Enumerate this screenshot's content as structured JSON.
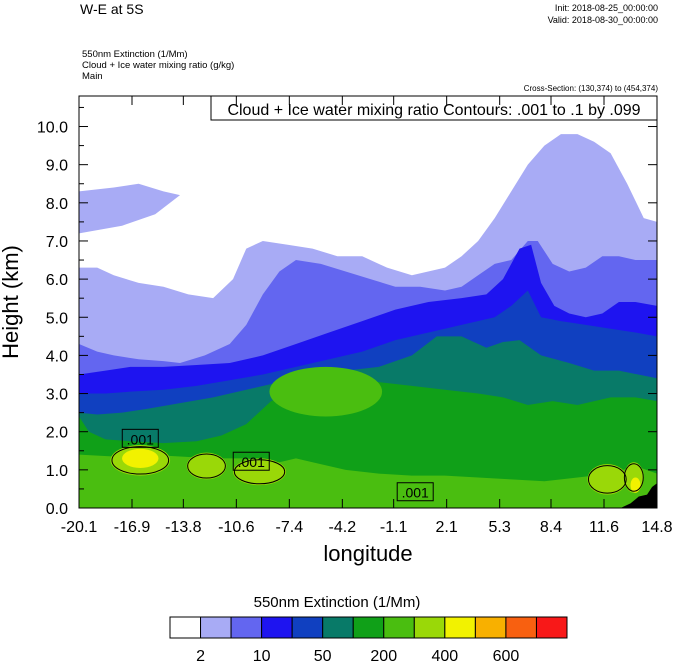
{
  "header": {
    "title": "W-E at 5S",
    "init": "Init: 2018-08-25_00:00:00",
    "valid": "Valid: 2018-08-30_00:00:00",
    "var1": "550nm Extinction   (1/Mm)",
    "var2": "Cloud + Ice water mixing ratio   (g/kg)",
    "var3": "Main",
    "cross_section": "Cross-Section: (130,374) to (454,374)"
  },
  "chart_data": {
    "type": "heatmap",
    "subtitle": "Cloud + Ice water mixing ratio Contours: .001 to .1 by .099",
    "xlabel": "longitude",
    "ylabel": "Height (km)",
    "x_ticks": [
      "-20.1",
      "-16.9",
      "-13.8",
      "-10.6",
      "-7.4",
      "-4.2",
      "-1.1",
      "2.1",
      "5.3",
      "8.4",
      "11.6",
      "14.8"
    ],
    "x_tick_values": [
      -20.1,
      -16.9,
      -13.8,
      -10.6,
      -7.4,
      -4.2,
      -1.1,
      2.1,
      5.3,
      8.4,
      11.6,
      14.8
    ],
    "y_ticks": [
      "0.0",
      "1.0",
      "2.0",
      "3.0",
      "4.0",
      "5.0",
      "6.0",
      "7.0",
      "8.0",
      "9.0",
      "10.0"
    ],
    "y_tick_values": [
      0,
      1,
      2,
      3,
      4,
      5,
      6,
      7,
      8,
      9,
      10
    ],
    "xlim": [
      -20.1,
      14.8
    ],
    "ylim": [
      0,
      10.8
    ],
    "contour_labels": [
      {
        "text": ".001",
        "x": -16.4,
        "y": 1.8
      },
      {
        "text": ".001",
        "x": -9.7,
        "y": 1.2
      },
      {
        "text": ".001",
        "x": 0.2,
        "y": 0.4
      }
    ],
    "colorbar": {
      "title": "550nm Extinction  (1/Mm)",
      "colors": [
        "#ffffff",
        "#a8abf5",
        "#6366f0",
        "#1e14f0",
        "#1040c0",
        "#087a68",
        "#10a018",
        "#4abe10",
        "#9ad808",
        "#f2f200",
        "#f8b000",
        "#f86010",
        "#f81818"
      ],
      "labels": [
        "2",
        "10",
        "50",
        "200",
        "400",
        "600"
      ]
    },
    "bands": [
      {
        "level": 1,
        "color": "#a8abf5",
        "top": [
          [
            -20.1,
            6.3
          ],
          [
            -19,
            6.3
          ],
          [
            -18,
            6.1
          ],
          [
            -16.5,
            5.9
          ],
          [
            -15,
            5.8
          ],
          [
            -13.5,
            5.6
          ],
          [
            -12,
            5.5
          ],
          [
            -10.8,
            6.0
          ],
          [
            -10,
            6.8
          ],
          [
            -9,
            7.0
          ],
          [
            -7.5,
            6.9
          ],
          [
            -6,
            6.8
          ],
          [
            -4.5,
            6.6
          ],
          [
            -3,
            6.6
          ],
          [
            -1.5,
            6.3
          ],
          [
            0,
            6.1
          ],
          [
            2,
            6.3
          ],
          [
            3,
            6.6
          ],
          [
            4,
            7.0
          ],
          [
            5,
            7.6
          ],
          [
            6,
            8.3
          ],
          [
            7,
            9.0
          ],
          [
            8,
            9.5
          ],
          [
            9,
            9.8
          ],
          [
            10,
            9.8
          ],
          [
            11,
            9.6
          ],
          [
            12,
            9.3
          ],
          [
            13,
            8.5
          ],
          [
            14,
            7.6
          ],
          [
            14.8,
            7.5
          ]
        ],
        "bottom": 0
      },
      {
        "level": 1,
        "color": "#a8abf5",
        "region": "upper-patch",
        "poly": [
          [
            -20.1,
            8.3
          ],
          [
            -18,
            8.4
          ],
          [
            -16.5,
            8.5
          ],
          [
            -15,
            8.3
          ],
          [
            -14,
            8.2
          ],
          [
            -15.5,
            7.7
          ],
          [
            -17.5,
            7.4
          ],
          [
            -20.1,
            7.2
          ]
        ]
      },
      {
        "level": 2,
        "color": "#6366f0",
        "top": [
          [
            -20.1,
            4.3
          ],
          [
            -19,
            4.1
          ],
          [
            -18,
            4.0
          ],
          [
            -16.5,
            3.9
          ],
          [
            -15,
            3.85
          ],
          [
            -14,
            3.8
          ],
          [
            -12.5,
            4.0
          ],
          [
            -11,
            4.3
          ],
          [
            -10,
            4.8
          ],
          [
            -9,
            5.6
          ],
          [
            -8,
            6.2
          ],
          [
            -7,
            6.5
          ],
          [
            -5.5,
            6.4
          ],
          [
            -4,
            6.2
          ],
          [
            -2.5,
            6.0
          ],
          [
            -1,
            5.8
          ],
          [
            0.5,
            5.8
          ],
          [
            2,
            5.7
          ],
          [
            3,
            5.8
          ],
          [
            4,
            6.1
          ],
          [
            5,
            6.4
          ],
          [
            6,
            6.5
          ],
          [
            7,
            7.0
          ],
          [
            7.6,
            7.0
          ],
          [
            8.5,
            6.4
          ],
          [
            9.5,
            6.2
          ],
          [
            10.5,
            6.3
          ],
          [
            11.5,
            6.6
          ],
          [
            12.5,
            6.6
          ],
          [
            13.5,
            6.5
          ],
          [
            14.8,
            6.5
          ]
        ],
        "bottom": 0
      },
      {
        "level": 3,
        "color": "#1e14f0",
        "top": [
          [
            -20.1,
            3.5
          ],
          [
            -18.5,
            3.6
          ],
          [
            -17,
            3.7
          ],
          [
            -15,
            3.7
          ],
          [
            -13,
            3.75
          ],
          [
            -11,
            3.8
          ],
          [
            -9,
            4.0
          ],
          [
            -7,
            4.3
          ],
          [
            -5,
            4.6
          ],
          [
            -3,
            4.9
          ],
          [
            -1,
            5.2
          ],
          [
            1,
            5.4
          ],
          [
            3,
            5.5
          ],
          [
            4.5,
            5.6
          ],
          [
            5.5,
            6.0
          ],
          [
            6.5,
            6.8
          ],
          [
            7.2,
            6.9
          ],
          [
            7.8,
            5.9
          ],
          [
            8.6,
            5.3
          ],
          [
            9.5,
            5.1
          ],
          [
            10.5,
            5.0
          ],
          [
            11.5,
            5.1
          ],
          [
            12.5,
            5.4
          ],
          [
            13.5,
            5.4
          ],
          [
            14.8,
            5.3
          ]
        ],
        "bottom": 0
      },
      {
        "level": 4,
        "color": "#1040c0",
        "top": [
          [
            -20.1,
            3.0
          ],
          [
            -18.5,
            3.0
          ],
          [
            -17,
            3.05
          ],
          [
            -15,
            3.1
          ],
          [
            -13,
            3.2
          ],
          [
            -11,
            3.35
          ],
          [
            -9,
            3.5
          ],
          [
            -7,
            3.7
          ],
          [
            -5,
            3.9
          ],
          [
            -3,
            4.1
          ],
          [
            -1,
            4.4
          ],
          [
            1,
            4.6
          ],
          [
            3,
            4.8
          ],
          [
            5,
            5.0
          ],
          [
            6,
            5.3
          ],
          [
            7,
            5.7
          ],
          [
            7.8,
            5.0
          ],
          [
            9,
            4.9
          ],
          [
            10.5,
            4.8
          ],
          [
            12,
            4.7
          ],
          [
            13.5,
            4.6
          ],
          [
            14.8,
            4.5
          ]
        ],
        "bottom": 0
      },
      {
        "level": 5,
        "color": "#087a68",
        "top": [
          [
            -20.1,
            2.5
          ],
          [
            -19,
            2.45
          ],
          [
            -17.5,
            2.5
          ],
          [
            -16,
            2.6
          ],
          [
            -14,
            2.75
          ],
          [
            -12,
            2.9
          ],
          [
            -10,
            3.1
          ],
          [
            -8,
            3.3
          ],
          [
            -6,
            3.5
          ],
          [
            -4,
            3.6
          ],
          [
            -2,
            3.7
          ],
          [
            0,
            4.0
          ],
          [
            1.5,
            4.5
          ],
          [
            3,
            4.5
          ],
          [
            4.5,
            4.2
          ],
          [
            5.5,
            4.35
          ],
          [
            6.5,
            4.4
          ],
          [
            7.8,
            4.0
          ],
          [
            9.5,
            3.8
          ],
          [
            11,
            3.6
          ],
          [
            12.5,
            3.6
          ],
          [
            14.8,
            3.4
          ]
        ],
        "bottom": 0
      },
      {
        "level": 6,
        "color": "#10a018",
        "top": [
          [
            -20.1,
            2.4
          ],
          [
            -19.5,
            2.0
          ],
          [
            -18.5,
            1.8
          ],
          [
            -17,
            1.75
          ],
          [
            -15,
            1.7
          ],
          [
            -13,
            1.75
          ],
          [
            -11.5,
            1.9
          ],
          [
            -10,
            2.2
          ],
          [
            -8.5,
            2.8
          ],
          [
            -7.5,
            3.0
          ],
          [
            -6,
            3.2
          ],
          [
            -4,
            3.3
          ],
          [
            -2,
            3.3
          ],
          [
            0,
            3.2
          ],
          [
            2,
            3.1
          ],
          [
            4,
            3.0
          ],
          [
            5.5,
            2.9
          ],
          [
            7,
            2.7
          ],
          [
            8.5,
            2.8
          ],
          [
            10,
            2.7
          ],
          [
            12,
            2.9
          ],
          [
            13.5,
            2.9
          ],
          [
            14.8,
            2.8
          ]
        ],
        "bottom": 0
      },
      {
        "level": 7,
        "color": "#4abe10",
        "top": [
          [
            -20.1,
            1.4
          ],
          [
            -18,
            1.35
          ],
          [
            -16,
            1.4
          ],
          [
            -14,
            1.35
          ],
          [
            -12,
            1.3
          ],
          [
            -10,
            1.3
          ],
          [
            -8,
            1.2
          ],
          [
            -7,
            1.3
          ],
          [
            -6,
            1.2
          ],
          [
            -4,
            1.0
          ],
          [
            -2,
            0.9
          ],
          [
            0,
            0.85
          ],
          [
            2,
            0.85
          ],
          [
            4,
            0.8
          ],
          [
            6,
            0.75
          ],
          [
            8,
            0.7
          ],
          [
            10,
            0.8
          ],
          [
            12,
            0.9
          ],
          [
            13.5,
            1.1
          ],
          [
            14.8,
            0.9
          ]
        ],
        "bottom": 0
      }
    ],
    "blobs": [
      {
        "level": 8,
        "color": "#4abe10",
        "cx": -5.2,
        "cy": 3.05,
        "rx": 3.4,
        "ry": 0.65
      },
      {
        "level": 8,
        "color": "#9ad808",
        "cx": -16.4,
        "cy": 1.25,
        "rx": 1.8,
        "ry": 0.4
      },
      {
        "level": 9,
        "color": "#f2f200",
        "cx": -16.4,
        "cy": 1.3,
        "rx": 1.1,
        "ry": 0.25
      },
      {
        "level": 8,
        "color": "#9ad808",
        "cx": -12.4,
        "cy": 1.1,
        "rx": 1.2,
        "ry": 0.35
      },
      {
        "level": 8,
        "color": "#9ad808",
        "cx": -9.2,
        "cy": 0.95,
        "rx": 1.6,
        "ry": 0.35
      },
      {
        "level": 8,
        "color": "#9ad808",
        "cx": 11.8,
        "cy": 0.75,
        "rx": 1.2,
        "ry": 0.4
      },
      {
        "level": 8,
        "color": "#9ad808",
        "cx": 13.4,
        "cy": 0.8,
        "rx": 0.6,
        "ry": 0.4
      },
      {
        "level": 9,
        "color": "#f2f200",
        "cx": 13.5,
        "cy": 0.6,
        "rx": 0.3,
        "ry": 0.2
      }
    ],
    "terrain": [
      [
        12.6,
        0
      ],
      [
        13.2,
        0.12
      ],
      [
        13.7,
        0.3
      ],
      [
        14.2,
        0.35
      ],
      [
        14.5,
        0.55
      ],
      [
        14.8,
        0.65
      ],
      [
        14.8,
        0
      ]
    ]
  }
}
